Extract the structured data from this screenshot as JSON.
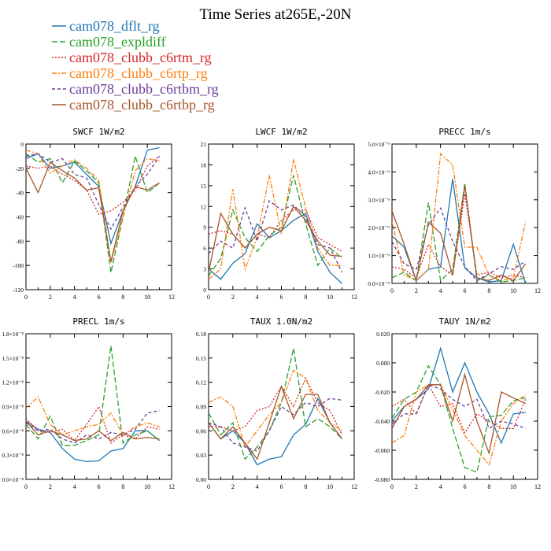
{
  "title": "Time Series at265E,-20N",
  "legend": [
    {
      "name": "cam078_dflt_rg",
      "color": "#1f77b4",
      "dash": "solid"
    },
    {
      "name": "cam078_expldiff",
      "color": "#2ca02c",
      "dash": "longdash"
    },
    {
      "name": "cam078_clubb_c6rtm_rg",
      "color": "#d62728",
      "dash": "dotted"
    },
    {
      "name": "cam078_clubb_c6rtp_rg",
      "color": "#ff7f0e",
      "dash": "dashdot"
    },
    {
      "name": "cam078_clubb_c6rtbm_rg",
      "color": "#6a3d9a",
      "dash": "dashed"
    },
    {
      "name": "cam078_clubb_c6rtbp_rg",
      "color": "#a6562a",
      "dash": "solid"
    }
  ],
  "chart_data": [
    {
      "type": "line",
      "title": "SWCF   1W/m2",
      "x": [
        0,
        1,
        2,
        3,
        4,
        5,
        6,
        7,
        8,
        9,
        10,
        11
      ],
      "xlim": [
        0,
        12
      ],
      "xticks": [
        "0",
        "2",
        "4",
        "6",
        "8",
        "10",
        "12"
      ],
      "ylim": [
        -120,
        0
      ],
      "yticks": [
        "-120",
        "-100",
        "-80",
        "-60",
        "-40",
        "-20",
        "0"
      ],
      "series": [
        {
          "name": "cam078_dflt_rg",
          "values": [
            -12,
            -8,
            -20,
            -18,
            -15,
            -25,
            -35,
            -82,
            -55,
            -35,
            -5,
            -3
          ]
        },
        {
          "name": "cam078_expldiff",
          "values": [
            -8,
            -15,
            -12,
            -32,
            -14,
            -22,
            -32,
            -106,
            -60,
            -10,
            -40,
            -32
          ]
        },
        {
          "name": "cam078_clubb_c6rtm_rg",
          "values": [
            -18,
            -20,
            -18,
            -25,
            -30,
            -38,
            -58,
            -55,
            -48,
            -38,
            -18,
            -10
          ]
        },
        {
          "name": "cam078_clubb_c6rtp_rg",
          "values": [
            -5,
            -8,
            -24,
            -18,
            -13,
            -20,
            -30,
            -98,
            -60,
            -22,
            -12,
            -14
          ]
        },
        {
          "name": "cam078_clubb_c6rtbm_rg",
          "values": [
            -10,
            -8,
            -15,
            -12,
            -25,
            -28,
            -50,
            -70,
            -52,
            -35,
            -25,
            -10
          ]
        },
        {
          "name": "cam078_clubb_c6rtbp_rg",
          "values": [
            -20,
            -40,
            -15,
            -22,
            -28,
            -38,
            -36,
            -97,
            -55,
            -35,
            -38,
            -32
          ]
        }
      ]
    },
    {
      "type": "line",
      "title": "LWCF   1W/m2",
      "x": [
        0,
        1,
        2,
        3,
        4,
        5,
        6,
        7,
        8,
        9,
        10,
        11
      ],
      "xlim": [
        0,
        12
      ],
      "xticks": [
        "0",
        "2",
        "4",
        "6",
        "8",
        "10",
        "12"
      ],
      "ylim": [
        0,
        21
      ],
      "yticks": [
        "0",
        "3",
        "6",
        "9",
        "12",
        "15",
        "18",
        "21"
      ],
      "series": [
        {
          "name": "cam078_dflt_rg",
          "values": [
            3,
            1.5,
            3.8,
            5.2,
            9.5,
            7.5,
            8.5,
            10,
            11,
            5.5,
            2.5,
            0.9
          ]
        },
        {
          "name": "cam078_expldiff",
          "values": [
            2,
            4.5,
            11.5,
            7.5,
            5.5,
            7.8,
            9,
            16.5,
            9.5,
            3.5,
            6,
            4.5
          ]
        },
        {
          "name": "cam078_clubb_c6rtm_rg",
          "values": [
            8,
            8.5,
            8,
            6,
            8,
            7.5,
            10,
            11.5,
            11.5,
            7.5,
            6.5,
            5.5
          ]
        },
        {
          "name": "cam078_clubb_c6rtp_rg",
          "values": [
            1.5,
            3,
            14.5,
            3,
            7.5,
            16.5,
            8,
            18.8,
            11.8,
            6,
            3.5,
            3.5
          ]
        },
        {
          "name": "cam078_clubb_c6rtbm_rg",
          "values": [
            5.2,
            7,
            6,
            11.8,
            7,
            12.8,
            11.5,
            12.2,
            10.5,
            6.5,
            6,
            2.5
          ]
        },
        {
          "name": "cam078_clubb_c6rtbp_rg",
          "values": [
            2.5,
            11,
            8,
            6,
            8,
            9,
            8.5,
            12,
            10,
            7,
            5,
            4.8
          ]
        }
      ]
    },
    {
      "type": "line",
      "title": "PRECC   1m/s",
      "x": [
        0,
        1,
        2,
        3,
        4,
        5,
        6,
        7,
        8,
        9,
        10,
        11
      ],
      "xlim": [
        0,
        12
      ],
      "xticks": [
        "0",
        "2",
        "4",
        "6",
        "8",
        "10",
        "12"
      ],
      "ylim": [
        0,
        5e-09
      ],
      "yticks": [
        "0.0×10⁻⁹",
        "1.0×10⁻⁹",
        "2.0×10⁻⁹",
        "3.0×10⁻⁹",
        "4.0×10⁻⁹",
        "5.0×10⁻⁹"
      ],
      "series": [
        {
          "name": "cam078_dflt_rg",
          "values": [
            1.7e-09,
            1.3e-09,
            1e-10,
            5e-10,
            6e-10,
            3.75e-09,
            5.5e-10,
            2e-10,
            5e-11,
            1e-10,
            1.4e-09,
            0
          ]
        },
        {
          "name": "cam078_expldiff",
          "values": [
            2e-10,
            4e-10,
            1e-10,
            2.9e-09,
            1e-10,
            5e-10,
            3.6e-09,
            1e-10,
            3e-10,
            5e-11,
            1e-10,
            2e-10
          ]
        },
        {
          "name": "cam078_clubb_c6rtm_rg",
          "values": [
            6e-10,
            5e-10,
            2e-10,
            1.4e-09,
            6e-10,
            3e-10,
            3.2e-09,
            3e-10,
            4e-10,
            2e-10,
            3e-10,
            2e-10
          ]
        },
        {
          "name": "cam078_clubb_c6rtp_rg",
          "values": [
            2.2e-09,
            3e-10,
            1e-10,
            5e-10,
            4.65e-09,
            4.25e-09,
            1.3e-09,
            1.3e-09,
            3e-10,
            1e-10,
            2e-10,
            2.2e-09
          ]
        },
        {
          "name": "cam078_clubb_c6rtbm_rg",
          "values": [
            1.5e-09,
            7e-10,
            5e-10,
            2.1e-09,
            2.7e-09,
            1.5e-09,
            6e-10,
            1e-10,
            3.5e-10,
            6e-10,
            5e-10,
            8e-10
          ]
        },
        {
          "name": "cam078_clubb_c6rtbp_rg",
          "values": [
            2.6e-09,
            1.4e-09,
            1e-10,
            2.2e-09,
            1.8e-09,
            3e-10,
            3.5e-09,
            2e-10,
            1e-10,
            3e-10,
            1e-10,
            7e-10
          ]
        }
      ]
    },
    {
      "type": "line",
      "title": "PRECL   1m/s",
      "x": [
        0,
        1,
        2,
        3,
        4,
        5,
        6,
        7,
        8,
        9,
        10,
        11
      ],
      "xlim": [
        0,
        12
      ],
      "xticks": [
        "0",
        "2",
        "4",
        "6",
        "8",
        "10",
        "12"
      ],
      "ylim": [
        0,
        1.8e-08
      ],
      "yticks": [
        "0.0×10⁻⁸",
        "0.3×10⁻⁸",
        "0.6×10⁻⁸",
        "0.9×10⁻⁸",
        "1.2×10⁻⁸",
        "1.5×10⁻⁸",
        "1.8×10⁻⁸"
      ],
      "series": [
        {
          "name": "cam078_dflt_rg",
          "values": [
            7.2e-09,
            6.2e-09,
            5.8e-09,
            3.8e-09,
            2.5e-09,
            2.2e-09,
            2.3e-09,
            3.5e-09,
            3.8e-09,
            6e-09,
            6e-09,
            4.8e-09
          ]
        },
        {
          "name": "cam078_expldiff",
          "values": [
            6.8e-09,
            5e-09,
            7.8e-09,
            4.2e-09,
            4.2e-09,
            4.8e-09,
            5.5e-09,
            1.65e-08,
            4.5e-09,
            5.5e-09,
            6e-09,
            4.8e-09
          ]
        },
        {
          "name": "cam078_clubb_c6rtm_rg",
          "values": [
            7.5e-09,
            6e-09,
            5.8e-09,
            6.2e-09,
            4.8e-09,
            6.8e-09,
            9e-09,
            4.5e-09,
            5.5e-09,
            5e-09,
            6.5e-09,
            6.2e-09
          ]
        },
        {
          "name": "cam078_clubb_c6rtp_rg",
          "values": [
            8.8e-09,
            1.02e-08,
            6.8e-09,
            5.5e-09,
            6e-09,
            6.5e-09,
            6.8e-09,
            8.2e-09,
            5.5e-09,
            6.5e-09,
            7e-09,
            6.5e-09
          ]
        },
        {
          "name": "cam078_clubb_c6rtbm_rg",
          "values": [
            7e-09,
            6e-09,
            6.2e-09,
            5e-09,
            4.5e-09,
            5.5e-09,
            5e-09,
            5.8e-09,
            5.5e-09,
            6.2e-09,
            8.2e-09,
            8.5e-09
          ]
        },
        {
          "name": "cam078_clubb_c6rtbp_rg",
          "values": [
            7.2e-09,
            5.5e-09,
            6e-09,
            5.5e-09,
            4.8e-09,
            5e-09,
            6e-09,
            4.8e-09,
            5.8e-09,
            5e-09,
            5.2e-09,
            5e-09
          ]
        }
      ]
    },
    {
      "type": "line",
      "title": "TAUX   1.0N/m2",
      "x": [
        0,
        1,
        2,
        3,
        4,
        5,
        6,
        7,
        8,
        9,
        10,
        11
      ],
      "xlim": [
        0,
        12
      ],
      "xticks": [
        "0",
        "2",
        "4",
        "6",
        "8",
        "10",
        "12"
      ],
      "ylim": [
        0,
        0.18
      ],
      "yticks": [
        "0.00",
        "0.03",
        "0.06",
        "0.09",
        "0.12",
        "0.15",
        "0.18"
      ],
      "series": [
        {
          "name": "cam078_dflt_rg",
          "values": [
            0.07,
            0.05,
            0.06,
            0.045,
            0.018,
            0.025,
            0.028,
            0.055,
            0.068,
            0.1,
            0.07,
            0.05
          ]
        },
        {
          "name": "cam078_expldiff",
          "values": [
            0.082,
            0.055,
            0.07,
            0.025,
            0.04,
            0.06,
            0.095,
            0.162,
            0.065,
            0.075,
            0.065,
            0.05
          ]
        },
        {
          "name": "cam078_clubb_c6rtm_rg",
          "values": [
            0.065,
            0.065,
            0.06,
            0.065,
            0.085,
            0.09,
            0.115,
            0.09,
            0.125,
            0.095,
            0.085,
            0.055
          ]
        },
        {
          "name": "cam078_clubb_c6rtp_rg",
          "values": [
            0.095,
            0.102,
            0.09,
            0.04,
            0.06,
            0.08,
            0.095,
            0.135,
            0.125,
            0.085,
            0.07,
            0.06
          ]
        },
        {
          "name": "cam078_clubb_c6rtbm_rg",
          "values": [
            0.07,
            0.065,
            0.045,
            0.04,
            0.035,
            0.06,
            0.09,
            0.08,
            0.095,
            0.09,
            0.1,
            0.098
          ]
        },
        {
          "name": "cam078_clubb_c6rtbp_rg",
          "values": [
            0.07,
            0.05,
            0.065,
            0.045,
            0.025,
            0.07,
            0.115,
            0.075,
            0.105,
            0.105,
            0.07,
            0.05
          ]
        }
      ]
    },
    {
      "type": "line",
      "title": "TAUY   1N/m2",
      "x": [
        0,
        1,
        2,
        3,
        4,
        5,
        6,
        7,
        8,
        9,
        10,
        11
      ],
      "xlim": [
        0,
        12
      ],
      "xticks": [
        "0",
        "2",
        "4",
        "6",
        "8",
        "10",
        "12"
      ],
      "ylim": [
        -0.08,
        0.02
      ],
      "yticks": [
        "-0.080",
        "-0.060",
        "-0.040",
        "-0.020",
        "0.000",
        "0.020"
      ],
      "series": [
        {
          "name": "cam078_dflt_rg",
          "values": [
            -0.04,
            -0.03,
            -0.025,
            -0.018,
            0.01,
            -0.02,
            0,
            -0.02,
            -0.035,
            -0.055,
            -0.035,
            -0.034
          ]
        },
        {
          "name": "cam078_expldiff",
          "values": [
            -0.038,
            -0.025,
            -0.02,
            -0.002,
            -0.015,
            -0.045,
            -0.072,
            -0.075,
            -0.037,
            -0.036,
            -0.026,
            -0.024
          ]
        },
        {
          "name": "cam078_clubb_c6rtm_rg",
          "values": [
            -0.03,
            -0.025,
            -0.035,
            -0.015,
            -0.03,
            -0.028,
            -0.048,
            -0.035,
            -0.04,
            -0.045,
            -0.045,
            -0.025
          ]
        },
        {
          "name": "cam078_clubb_c6rtp_rg",
          "values": [
            -0.055,
            -0.05,
            -0.02,
            -0.015,
            -0.015,
            -0.032,
            -0.05,
            -0.06,
            -0.07,
            -0.04,
            -0.028,
            -0.022
          ]
        },
        {
          "name": "cam078_clubb_c6rtbm_rg",
          "values": [
            -0.042,
            -0.035,
            -0.035,
            -0.015,
            -0.018,
            -0.025,
            -0.03,
            -0.025,
            -0.045,
            -0.04,
            -0.042,
            -0.045
          ]
        },
        {
          "name": "cam078_clubb_c6rtbp_rg",
          "values": [
            -0.045,
            -0.03,
            -0.025,
            -0.015,
            -0.015,
            -0.04,
            -0.008,
            -0.04,
            -0.062,
            -0.02,
            -0.024,
            -0.028
          ]
        }
      ]
    }
  ]
}
